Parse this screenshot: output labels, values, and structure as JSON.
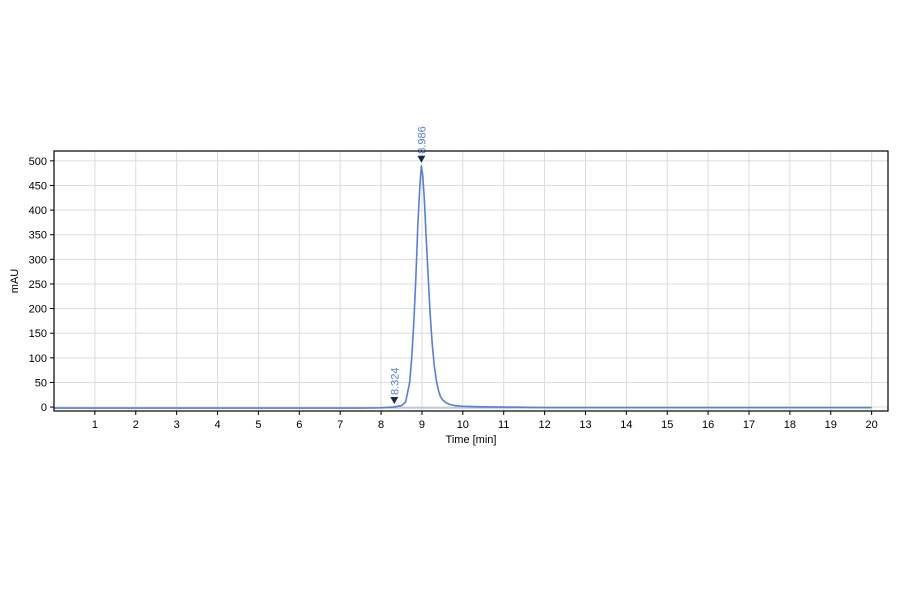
{
  "chart_data": {
    "type": "line",
    "xlabel": "Time [min]",
    "ylabel": "mAU",
    "xlim": [
      0,
      20.4
    ],
    "ylim": [
      -8,
      520
    ],
    "x_ticks": [
      1,
      2,
      3,
      4,
      5,
      6,
      7,
      8,
      9,
      10,
      11,
      12,
      13,
      14,
      15,
      16,
      17,
      18,
      19,
      20
    ],
    "y_ticks": [
      0,
      50,
      100,
      150,
      200,
      250,
      300,
      350,
      400,
      450,
      500
    ],
    "grid": true,
    "legend": "none",
    "series": [
      {
        "color": "#5b7fd1",
        "x": [
          0,
          7.5,
          8.0,
          8.3,
          8.5,
          8.6,
          8.7,
          8.75,
          8.8,
          8.85,
          8.9,
          8.95,
          8.986,
          9.02,
          9.06,
          9.1,
          9.15,
          9.2,
          9.25,
          9.3,
          9.35,
          9.4,
          9.45,
          9.5,
          9.6,
          9.7,
          9.8,
          10.0,
          10.5,
          11.0,
          12.0,
          20.0
        ],
        "values": [
          -2,
          -2,
          -1.5,
          0,
          3,
          10,
          50,
          100,
          170,
          260,
          370,
          450,
          490,
          470,
          420,
          350,
          270,
          190,
          130,
          85,
          55,
          35,
          22,
          15,
          8,
          5,
          3,
          1.5,
          0.5,
          0,
          -1,
          -1
        ]
      }
    ],
    "annotations": [
      {
        "text": "8.324",
        "x": 8.324,
        "y": 0,
        "color": "#5b7fd1"
      },
      {
        "text": "8.986",
        "x": 8.986,
        "y": 490,
        "color": "#5b7fd1"
      }
    ],
    "marker_color": "#1a2a4a"
  }
}
